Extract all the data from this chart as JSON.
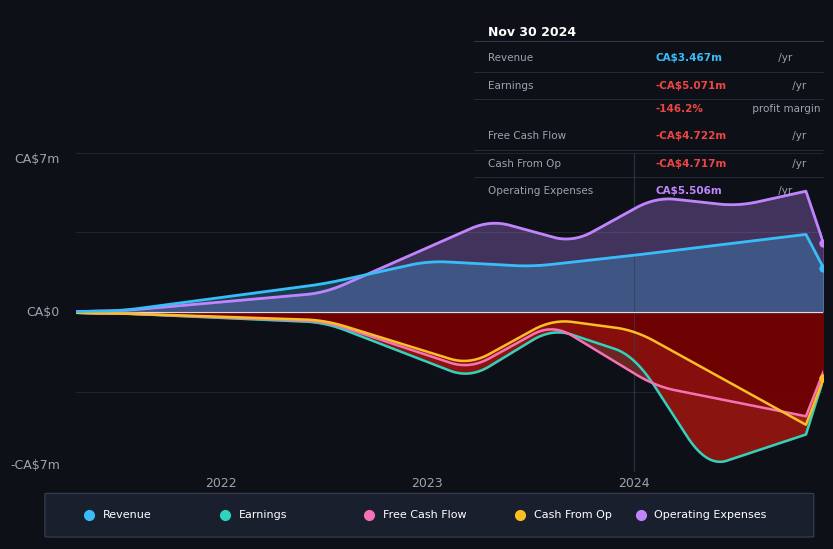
{
  "bg_color": "#0d1117",
  "ylabel_top": "CA$7m",
  "ylabel_zero": "CA$0",
  "ylabel_bot": "-CA$7m",
  "x_ticks": [
    "2022",
    "2023",
    "2024"
  ],
  "legend": [
    {
      "label": "Revenue",
      "color": "#38bdf8"
    },
    {
      "label": "Earnings",
      "color": "#2dd4bf"
    },
    {
      "label": "Free Cash Flow",
      "color": "#f472b6"
    },
    {
      "label": "Cash From Op",
      "color": "#fbbf24"
    },
    {
      "label": "Operating Expenses",
      "color": "#c084fc"
    }
  ],
  "tooltip": {
    "title": "Nov 30 2024",
    "rows": [
      {
        "label": "Revenue",
        "value": "CA$3.467m",
        "suffix": " /yr",
        "value_color": "#38bdf8",
        "suffix_color": "#9ca3af"
      },
      {
        "label": "Earnings",
        "value": "-CA$5.071m",
        "suffix": " /yr",
        "value_color": "#ef4444",
        "suffix_color": "#9ca3af"
      },
      {
        "label": "",
        "value": "-146.2%",
        "suffix": " profit margin",
        "value_color": "#ef4444",
        "suffix_color": "#9ca3af"
      },
      {
        "label": "Free Cash Flow",
        "value": "-CA$4.722m",
        "suffix": " /yr",
        "value_color": "#ef4444",
        "suffix_color": "#9ca3af"
      },
      {
        "label": "Cash From Op",
        "value": "-CA$4.717m",
        "suffix": " /yr",
        "value_color": "#ef4444",
        "suffix_color": "#9ca3af"
      },
      {
        "label": "Operating Expenses",
        "value": "CA$5.506m",
        "suffix": " /yr",
        "value_color": "#c084fc",
        "suffix_color": "#9ca3af"
      }
    ]
  }
}
